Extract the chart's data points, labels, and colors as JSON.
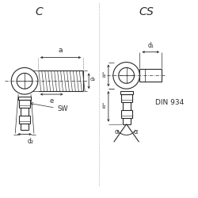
{
  "bg_color": "#ffffff",
  "line_color": "#2a2a2a",
  "title_C": "C",
  "title_CS": "CS",
  "din_label": "DIN 934",
  "fig_width": 2.5,
  "fig_height": 2.5,
  "dpi": 100
}
